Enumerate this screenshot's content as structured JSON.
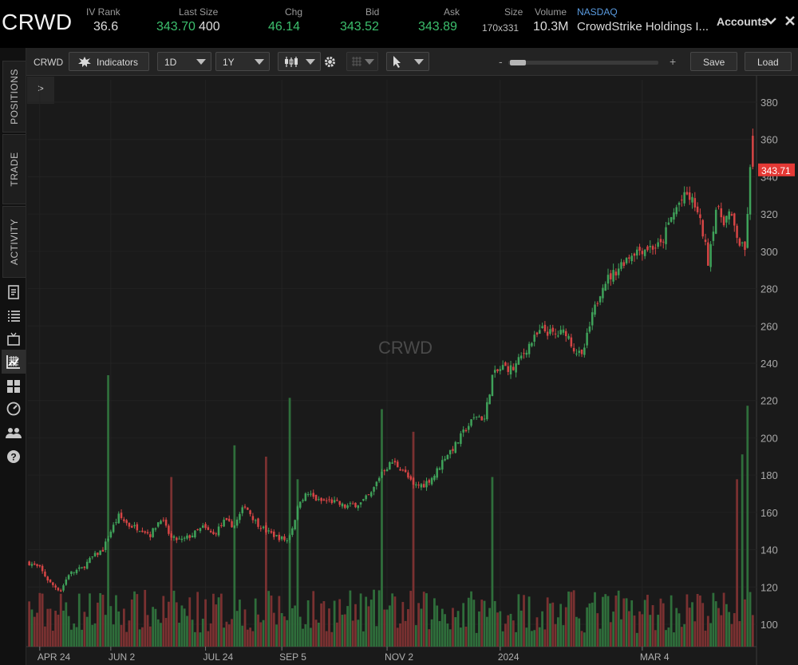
{
  "header": {
    "symbol": "CRWD",
    "iv_rank_label": "IV Rank",
    "iv_rank_value": "36.6",
    "last_size_label": "Last Size",
    "last_value": "343.70",
    "size_value": "400",
    "chg_label": "Chg",
    "chg_value": "46.14",
    "bid_label": "Bid",
    "bid_value": "343.52",
    "ask_label": "Ask",
    "ask_value": "343.89",
    "size_label": "Size",
    "size_quote": "170x331",
    "volume_label": "Volume",
    "volume_value": "10.3M",
    "exchange": "NASDAQ",
    "company": "CrowdStrike Holdings I...",
    "accounts_label": "Accounts"
  },
  "left_tabs": [
    "POSITIONS",
    "TRADE",
    "ACTIVITY"
  ],
  "left_icons": [
    "document-icon",
    "list-icon",
    "tv-icon",
    "chart-icon",
    "grid-icon",
    "gauge-icon",
    "people-icon",
    "help-icon"
  ],
  "toolbar": {
    "symbol": "CRWD",
    "indicators_label": "Indicators",
    "interval": "1D",
    "range": "1Y",
    "save_label": "Save",
    "load_label": "Load",
    "zoom_minus": "-",
    "zoom_plus": "+",
    "expand_label": ">"
  },
  "colors": {
    "up": "#3fa25a",
    "down": "#d64545",
    "price_tag": "#e53935",
    "volume_up": "#2f6e3b",
    "volume_down": "#7a3131"
  },
  "chart_data": {
    "type": "candlestick",
    "watermark": "CRWD",
    "last_price_label": "343.71",
    "y_ticks": [
      100,
      120,
      140,
      160,
      180,
      200,
      220,
      240,
      260,
      280,
      300,
      320,
      340,
      360,
      380
    ],
    "ylim": [
      88,
      392
    ],
    "x_tick_labels": [
      "APR 24",
      "JUN 2",
      "JUL 24",
      "SEP 5",
      "NOV 2",
      "2024",
      "MAR 4"
    ],
    "x_tick_index": [
      4,
      31,
      67,
      96,
      136,
      179,
      233
    ],
    "close_path": [
      [
        0,
        133
      ],
      [
        4,
        130
      ],
      [
        8,
        122
      ],
      [
        12,
        118
      ],
      [
        15,
        127
      ],
      [
        20,
        130
      ],
      [
        24,
        136
      ],
      [
        28,
        140
      ],
      [
        31,
        150
      ],
      [
        34,
        158
      ],
      [
        38,
        153
      ],
      [
        43,
        151
      ],
      [
        46,
        148
      ],
      [
        50,
        157
      ],
      [
        54,
        146
      ],
      [
        58,
        145
      ],
      [
        62,
        148
      ],
      [
        66,
        152
      ],
      [
        70,
        148
      ],
      [
        74,
        155
      ],
      [
        78,
        153
      ],
      [
        82,
        164
      ],
      [
        86,
        155
      ],
      [
        90,
        150
      ],
      [
        94,
        147
      ],
      [
        98,
        145
      ],
      [
        100,
        152
      ],
      [
        103,
        167
      ],
      [
        106,
        170
      ],
      [
        110,
        166
      ],
      [
        115,
        166
      ],
      [
        120,
        163
      ],
      [
        126,
        165
      ],
      [
        130,
        170
      ],
      [
        134,
        182
      ],
      [
        138,
        187
      ],
      [
        142,
        183
      ],
      [
        146,
        174
      ],
      [
        150,
        175
      ],
      [
        154,
        180
      ],
      [
        158,
        190
      ],
      [
        162,
        196
      ],
      [
        166,
        205
      ],
      [
        170,
        212
      ],
      [
        173,
        210
      ],
      [
        176,
        233
      ],
      [
        180,
        238
      ],
      [
        184,
        237
      ],
      [
        190,
        250
      ],
      [
        195,
        258
      ],
      [
        200,
        255
      ],
      [
        204,
        257
      ],
      [
        207,
        248
      ],
      [
        210,
        243
      ],
      [
        214,
        265
      ],
      [
        218,
        283
      ],
      [
        222,
        288
      ],
      [
        226,
        295
      ],
      [
        230,
        300
      ],
      [
        235,
        302
      ],
      [
        240,
        303
      ],
      [
        244,
        318
      ],
      [
        247,
        326
      ],
      [
        250,
        330
      ],
      [
        253,
        325
      ],
      [
        256,
        310
      ],
      [
        258,
        295
      ],
      [
        261,
        323
      ],
      [
        264,
        317
      ],
      [
        266,
        320
      ],
      [
        268,
        313
      ],
      [
        270,
        304
      ],
      [
        272,
        300
      ],
      [
        274,
        343
      ]
    ],
    "volume_scale_max": 240,
    "volume_spikes": {
      "30": 240,
      "99": 220,
      "134": 210,
      "146": 190,
      "176": 150,
      "273": 213,
      "271": 170,
      "269": 148,
      "78": 178,
      "54": 150,
      "90": 168,
      "102": 148
    },
    "volume_low_pct": 0.16
  }
}
